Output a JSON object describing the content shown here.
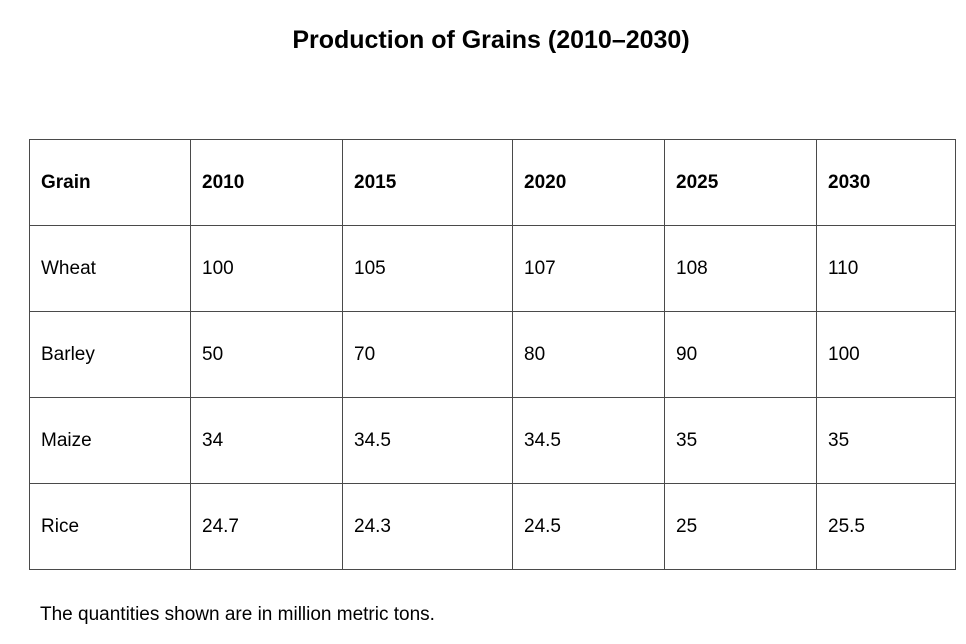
{
  "chart_data": {
    "type": "table",
    "title": "Production of Grains (2010–2030)",
    "columns": [
      "Grain",
      "2010",
      "2015",
      "2020",
      "2025",
      "2030"
    ],
    "rows": [
      [
        "Wheat",
        "100",
        "105",
        "107",
        "108",
        "110"
      ],
      [
        "Barley",
        "50",
        "70",
        "80",
        "90",
        "100"
      ],
      [
        "Maize",
        "34",
        "34.5",
        "34.5",
        "35",
        "35"
      ],
      [
        "Rice",
        "24.7",
        "24.3",
        "24.5",
        "25",
        "25.5"
      ]
    ],
    "note": "The quantities shown are in million metric tons."
  }
}
